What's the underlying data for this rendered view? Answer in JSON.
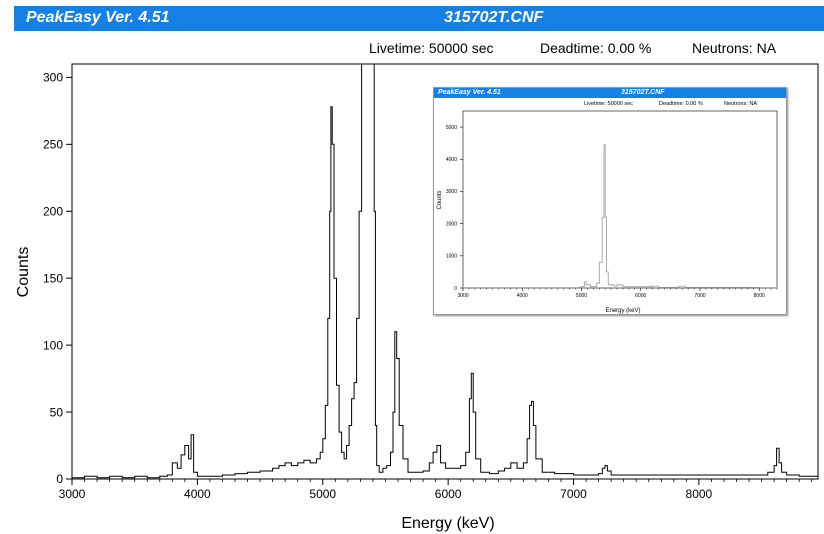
{
  "window": {
    "app_title": "PeakEasy Ver. 4.51",
    "file_title": "315702T.CNF"
  },
  "status": {
    "livetime": "Livetime: 50000 sec",
    "deadtime": "Deadtime: 0.00 %",
    "neutrons": "Neutrons: NA"
  },
  "colors": {
    "title_bar": "#1680e5",
    "spectrum": "#000000",
    "inset_spectrum": "#9a9a9a"
  },
  "chart_data": [
    {
      "type": "line",
      "xlabel": "Energy (keV)",
      "ylabel": "Counts",
      "xlim": [
        3000,
        8950
      ],
      "ylim": [
        0,
        310
      ],
      "x_ticks": [
        3000,
        4000,
        5000,
        6000,
        7000,
        8000
      ],
      "y_ticks": [
        0,
        50,
        100,
        150,
        200,
        250,
        300
      ],
      "series": [
        {
          "values_note": "",
          "points": [
            [
              3000,
              1
            ],
            [
              3100,
              2
            ],
            [
              3200,
              1
            ],
            [
              3300,
              2
            ],
            [
              3400,
              1
            ],
            [
              3500,
              2
            ],
            [
              3600,
              1
            ],
            [
              3700,
              2
            ],
            [
              3760,
              3
            ],
            [
              3800,
              12
            ],
            [
              3840,
              8
            ],
            [
              3870,
              18
            ],
            [
              3900,
              25
            ],
            [
              3930,
              15
            ],
            [
              3950,
              33
            ],
            [
              3970,
              5
            ],
            [
              4000,
              2
            ],
            [
              4100,
              2
            ],
            [
              4200,
              3
            ],
            [
              4300,
              4
            ],
            [
              4400,
              5
            ],
            [
              4500,
              6
            ],
            [
              4600,
              8
            ],
            [
              4650,
              10
            ],
            [
              4700,
              12
            ],
            [
              4750,
              10
            ],
            [
              4800,
              12
            ],
            [
              4850,
              14
            ],
            [
              4900,
              12
            ],
            [
              4950,
              15
            ],
            [
              4980,
              20
            ],
            [
              5000,
              30
            ],
            [
              5020,
              55
            ],
            [
              5040,
              120
            ],
            [
              5055,
              200
            ],
            [
              5065,
              278
            ],
            [
              5075,
              250
            ],
            [
              5090,
              150
            ],
            [
              5110,
              70
            ],
            [
              5130,
              35
            ],
            [
              5150,
              20
            ],
            [
              5170,
              15
            ],
            [
              5190,
              25
            ],
            [
              5210,
              40
            ],
            [
              5230,
              60
            ],
            [
              5250,
              72
            ],
            [
              5270,
              120
            ],
            [
              5290,
              200
            ],
            [
              5310,
              310
            ],
            [
              5330,
              310
            ],
            [
              5345,
              310
            ],
            [
              5360,
              310
            ],
            [
              5380,
              310
            ],
            [
              5400,
              310
            ],
            [
              5410,
              200
            ],
            [
              5420,
              40
            ],
            [
              5430,
              10
            ],
            [
              5450,
              5
            ],
            [
              5480,
              8
            ],
            [
              5510,
              10
            ],
            [
              5540,
              20
            ],
            [
              5560,
              50
            ],
            [
              5575,
              110
            ],
            [
              5590,
              90
            ],
            [
              5610,
              40
            ],
            [
              5640,
              15
            ],
            [
              5680,
              5
            ],
            [
              5750,
              5
            ],
            [
              5800,
              6
            ],
            [
              5850,
              12
            ],
            [
              5880,
              20
            ],
            [
              5910,
              25
            ],
            [
              5940,
              12
            ],
            [
              5980,
              8
            ],
            [
              6050,
              8
            ],
            [
              6100,
              10
            ],
            [
              6140,
              20
            ],
            [
              6170,
              60
            ],
            [
              6185,
              79
            ],
            [
              6200,
              50
            ],
            [
              6220,
              15
            ],
            [
              6260,
              5
            ],
            [
              6330,
              4
            ],
            [
              6400,
              6
            ],
            [
              6450,
              8
            ],
            [
              6500,
              12
            ],
            [
              6550,
              8
            ],
            [
              6600,
              12
            ],
            [
              6630,
              30
            ],
            [
              6650,
              55
            ],
            [
              6665,
              58
            ],
            [
              6680,
              40
            ],
            [
              6700,
              15
            ],
            [
              6750,
              5
            ],
            [
              6850,
              4
            ],
            [
              7000,
              3
            ],
            [
              7100,
              3
            ],
            [
              7200,
              4
            ],
            [
              7230,
              8
            ],
            [
              7250,
              10
            ],
            [
              7270,
              6
            ],
            [
              7300,
              3
            ],
            [
              7500,
              3
            ],
            [
              7700,
              3
            ],
            [
              7900,
              3
            ],
            [
              8100,
              3
            ],
            [
              8300,
              3
            ],
            [
              8500,
              3
            ],
            [
              8550,
              5
            ],
            [
              8600,
              10
            ],
            [
              8620,
              23
            ],
            [
              8640,
              12
            ],
            [
              8660,
              5
            ],
            [
              8700,
              3
            ],
            [
              8800,
              2
            ],
            [
              8950,
              2
            ]
          ]
        }
      ]
    },
    {
      "type": "line",
      "title": "315702T.CNF",
      "xlabel": "Energy (keV)",
      "ylabel": "Counts",
      "xlim": [
        3000,
        8300
      ],
      "ylim": [
        0,
        5500
      ],
      "x_ticks": [
        3000,
        4000,
        5000,
        6000,
        7000,
        8000
      ],
      "y_ticks": [
        0,
        1000,
        2000,
        3000,
        4000,
        5000
      ],
      "series": [
        {
          "points": [
            [
              3000,
              10
            ],
            [
              4000,
              10
            ],
            [
              4950,
              20
            ],
            [
              5000,
              50
            ],
            [
              5050,
              200
            ],
            [
              5080,
              100
            ],
            [
              5150,
              40
            ],
            [
              5250,
              150
            ],
            [
              5300,
              800
            ],
            [
              5350,
              2200
            ],
            [
              5380,
              4450
            ],
            [
              5400,
              2200
            ],
            [
              5420,
              500
            ],
            [
              5450,
              100
            ],
            [
              5550,
              60
            ],
            [
              5600,
              100
            ],
            [
              5700,
              40
            ],
            [
              6100,
              40
            ],
            [
              6200,
              60
            ],
            [
              6300,
              20
            ],
            [
              6650,
              60
            ],
            [
              6750,
              20
            ],
            [
              7250,
              20
            ],
            [
              8000,
              10
            ],
            [
              8300,
              10
            ]
          ]
        }
      ]
    }
  ],
  "inset": {
    "app_title": "PeakEasy Ver. 4.51",
    "file_title": "315702T.CNF",
    "livetime": "Livetime: 50000 sec",
    "deadtime": "Deadtime: 0.00 %",
    "neutrons": "Neutrons: NA"
  }
}
